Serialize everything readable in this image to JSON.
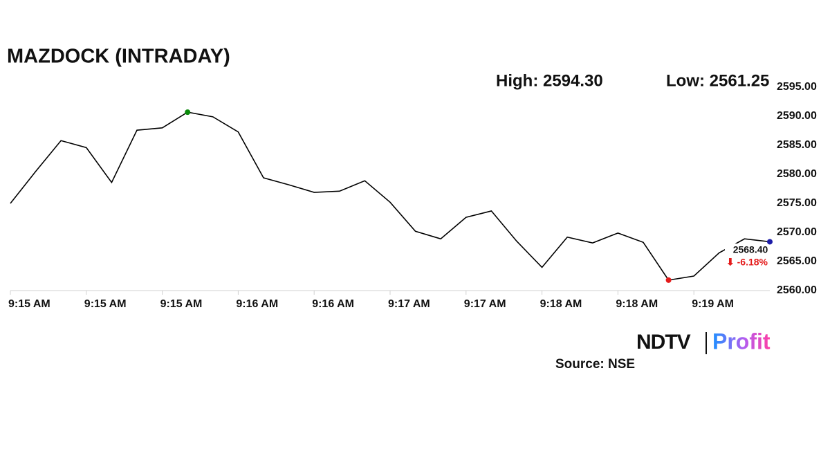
{
  "chart_data": {
    "type": "line",
    "title": "MAZDOCK (INTRADAY)",
    "high_text": "High: 2594.30",
    "low_text": "Low: 2561.25",
    "last_label": "2568.40",
    "change_label": "⬇ -6.18%",
    "source": "Source: NSE",
    "logo": {
      "left": "NDTV",
      "right": "Profit"
    },
    "x": [
      0,
      1,
      2,
      3,
      4,
      5,
      6,
      7,
      8,
      9,
      10,
      11,
      12,
      13,
      14,
      15,
      16,
      17,
      18,
      19,
      20,
      21,
      22,
      23,
      24,
      25,
      26,
      27,
      28,
      29,
      30
    ],
    "series": [
      {
        "color": "#000000",
        "values": [
          2575.0,
          2580.5,
          2585.8,
          2584.6,
          2578.6,
          2587.6,
          2588.0,
          2590.7,
          2589.9,
          2587.3,
          2579.4,
          2578.2,
          2576.9,
          2577.1,
          2578.9,
          2575.2,
          2570.2,
          2568.9,
          2572.6,
          2573.7,
          2568.5,
          2564.0,
          2569.2,
          2568.2,
          2569.9,
          2568.3,
          2561.8,
          2562.5,
          2566.5,
          2568.9,
          2568.4
        ]
      }
    ],
    "marker_colors": {
      "max": "#0b8a0b",
      "min": "#e41b1b",
      "last": "#1c1ca8"
    },
    "xlim": [
      0,
      30
    ],
    "xticks": [
      {
        "value": 0,
        "label": "9:15 AM"
      },
      {
        "value": 3,
        "label": "9:15 AM"
      },
      {
        "value": 6,
        "label": "9:15 AM"
      },
      {
        "value": 9,
        "label": "9:16 AM"
      },
      {
        "value": 12,
        "label": "9:16 AM"
      },
      {
        "value": 15,
        "label": "9:17 AM"
      },
      {
        "value": 18,
        "label": "9:17 AM"
      },
      {
        "value": 21,
        "label": "9:18 AM"
      },
      {
        "value": 24,
        "label": "9:18 AM"
      },
      {
        "value": 27,
        "label": "9:19 AM"
      }
    ],
    "ylim": [
      2560,
      2595
    ],
    "yticks": [
      {
        "value": 2560,
        "label": "2560.00"
      },
      {
        "value": 2565,
        "label": "2565.00"
      },
      {
        "value": 2570,
        "label": "2570.00"
      },
      {
        "value": 2575,
        "label": "2575.00"
      },
      {
        "value": 2580,
        "label": "2580.00"
      },
      {
        "value": 2585,
        "label": "2585.00"
      },
      {
        "value": 2590,
        "label": "2590.00"
      },
      {
        "value": 2595,
        "label": "2595.00"
      }
    ],
    "grid": false
  }
}
